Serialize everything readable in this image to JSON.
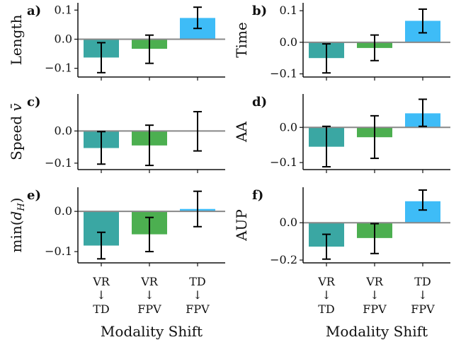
{
  "colors": {
    "VR_TD": "#3aa7a3",
    "VR_FPV": "#4caf50",
    "TD_FPV": "#3ebcf7",
    "zero_line": "#888888",
    "axis": "#111111",
    "error_bar": "#000000"
  },
  "categories": [
    {
      "key": "VR_TD",
      "top": "VR",
      "arrow": "↓",
      "bottom": "TD"
    },
    {
      "key": "VR_FPV",
      "top": "VR",
      "arrow": "↓",
      "bottom": "FPV"
    },
    {
      "key": "TD_FPV",
      "top": "TD",
      "arrow": "↓",
      "bottom": "FPV"
    }
  ],
  "xlabel": "Modality Shift",
  "chart_data": [
    {
      "type": "bar",
      "letter": "a)",
      "ylabel": "Length",
      "ylim": [
        -0.13,
        0.125
      ],
      "yticks": [
        {
          "v": 0.1,
          "t": "0.1"
        },
        {
          "v": 0.0,
          "t": "0.0"
        },
        {
          "v": -0.1,
          "t": "−0.1"
        }
      ],
      "values": [
        -0.063,
        -0.033,
        0.073
      ],
      "err_low": [
        -0.115,
        -0.083,
        0.037
      ],
      "err_high": [
        -0.012,
        0.014,
        0.11
      ]
    },
    {
      "type": "bar",
      "letter": "b)",
      "ylabel": "Time",
      "ylim": [
        -0.11,
        0.125
      ],
      "yticks": [
        {
          "v": 0.1,
          "t": "0.1"
        },
        {
          "v": 0.0,
          "t": "0.0"
        },
        {
          "v": -0.1,
          "t": "−0.1"
        }
      ],
      "values": [
        -0.05,
        -0.018,
        0.068
      ],
      "err_low": [
        -0.097,
        -0.058,
        0.03
      ],
      "err_high": [
        -0.005,
        0.023,
        0.105
      ]
    },
    {
      "type": "bar",
      "letter": "c)",
      "ylabel": "Speed v̄",
      "ylim": [
        -0.12,
        0.115
      ],
      "yticks": [
        {
          "v": 0.0,
          "t": "0.0"
        },
        {
          "v": -0.1,
          "t": "−0.1"
        }
      ],
      "values": [
        -0.053,
        -0.045,
        0.0
      ],
      "err_low": [
        -0.103,
        -0.107,
        -0.062
      ],
      "err_high": [
        -0.002,
        0.018,
        0.06
      ]
    },
    {
      "type": "bar",
      "letter": "d)",
      "ylabel": "AA",
      "ylim": [
        -0.12,
        0.095
      ],
      "yticks": [
        {
          "v": 0.0,
          "t": "0.0"
        },
        {
          "v": -0.1,
          "t": "−0.1"
        }
      ],
      "values": [
        -0.055,
        -0.028,
        0.04
      ],
      "err_low": [
        -0.112,
        -0.088,
        0.003
      ],
      "err_high": [
        0.003,
        0.033,
        0.08
      ]
    },
    {
      "type": "bar",
      "letter": "e)",
      "ylabel": "min(d_H)",
      "ylabel_main": "min(",
      "ylabel_var": "d",
      "ylabel_sub": "H",
      "ylabel_close": ")",
      "ylabel_arrangement": "min(d_H)",
      "ylim": [
        -0.128,
        0.06
      ],
      "yticks": [
        {
          "v": 0.0,
          "t": "0.0"
        },
        {
          "v": -0.1,
          "t": "−0.1"
        }
      ],
      "values": [
        -0.085,
        -0.057,
        0.006
      ],
      "err_low": [
        -0.118,
        -0.1,
        -0.038
      ],
      "err_high": [
        -0.052,
        -0.015,
        0.05
      ]
    },
    {
      "type": "bar",
      "letter": "f)",
      "ylabel": "AUP",
      "ylim": [
        -0.215,
        0.19
      ],
      "yticks": [
        {
          "v": 0.0,
          "t": "0.0"
        },
        {
          "v": -0.2,
          "t": "−0.2"
        }
      ],
      "values": [
        -0.128,
        -0.082,
        0.115
      ],
      "err_low": [
        -0.195,
        -0.165,
        0.068
      ],
      "err_high": [
        -0.062,
        -0.005,
        0.175
      ]
    }
  ]
}
